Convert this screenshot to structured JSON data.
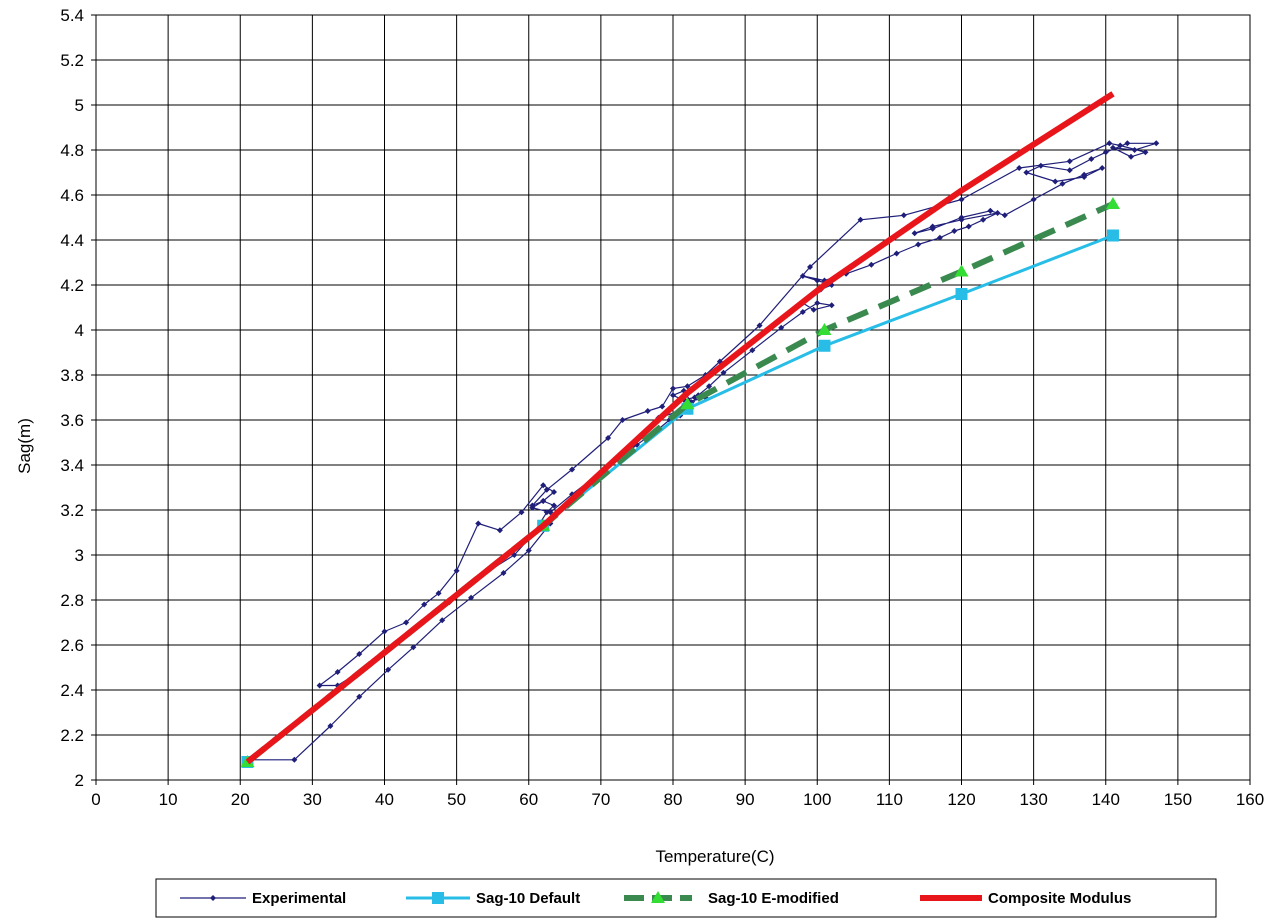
{
  "chart_data": {
    "type": "line",
    "title": "",
    "xlabel": "Temperature(C)",
    "ylabel": "Sag(m)",
    "xlim": [
      0,
      160
    ],
    "ylim": [
      2,
      5.4
    ],
    "xticks": [
      0,
      10,
      20,
      30,
      40,
      50,
      60,
      70,
      80,
      90,
      100,
      110,
      120,
      130,
      140,
      150,
      160
    ],
    "yticks": [
      "2",
      "2.2",
      "2.4",
      "2.6",
      "2.8",
      "3",
      "3.2",
      "3.4",
      "3.6",
      "3.8",
      "4",
      "4.2",
      "4.4",
      "4.6",
      "4.8",
      "5",
      "5.2",
      "5.4"
    ],
    "grid": true,
    "legend_position": "bottom",
    "series": [
      {
        "name": "Experimental",
        "color": "#1f1f7a",
        "marker": "diamond",
        "x": [
          21.0,
          27.5,
          32.5,
          36.5,
          40.5,
          44.0,
          48.0,
          52.0,
          56.5,
          60.0,
          63.0,
          65.5,
          70.0,
          75.0,
          78.0,
          79.5,
          81.0,
          82.5,
          83.5,
          85.0,
          87.0,
          91.0,
          95.0,
          98.0,
          100.0,
          102.0,
          99.5,
          98.0,
          100.5,
          102.0,
          100.0,
          98.0,
          101.0,
          104.0,
          107.5,
          111.0,
          114.0,
          117.0,
          119.0,
          121.0,
          123.0,
          125.0,
          120.0,
          116.0,
          113.5,
          116.0,
          120.0,
          124.0,
          126.0,
          130.0,
          134.0,
          137.0,
          139.5,
          137.0,
          133.0,
          129.0,
          131.0,
          135.0,
          138.0,
          140.0,
          143.0,
          147.0,
          144.0,
          141.0,
          143.5,
          145.5,
          142.0,
          140.5,
          135.0,
          128.0,
          120.0,
          112.0,
          106.0,
          99.0,
          92.0,
          86.5,
          84.5,
          82.0,
          80.0,
          78.5,
          76.5,
          73.0,
          71.0,
          66.0,
          62.5,
          60.5,
          62.0,
          63.5,
          62.0,
          59.0,
          56.0,
          53.0,
          50.0,
          47.5,
          45.5,
          43.0,
          40.0,
          36.5,
          33.5,
          31.0,
          33.5,
          36.5,
          40.5,
          44.5,
          49.0,
          53.5,
          58.0,
          60.5,
          62.5,
          63.5,
          62.0,
          60.5,
          63.0,
          66.0,
          70.5,
          74.5,
          78.0,
          81.0,
          82.5,
          81.5,
          80.0,
          82.0,
          84.5,
          85.0,
          83.0,
          81.5
        ],
        "y": [
          2.09,
          2.09,
          2.24,
          2.37,
          2.49,
          2.59,
          2.71,
          2.81,
          2.92,
          3.02,
          3.14,
          3.23,
          3.36,
          3.49,
          3.56,
          3.6,
          3.62,
          3.66,
          3.71,
          3.75,
          3.81,
          3.91,
          4.01,
          4.08,
          4.12,
          4.11,
          4.09,
          4.12,
          4.18,
          4.2,
          4.22,
          4.24,
          4.22,
          4.25,
          4.29,
          4.34,
          4.38,
          4.41,
          4.44,
          4.46,
          4.49,
          4.52,
          4.49,
          4.46,
          4.43,
          4.45,
          4.5,
          4.53,
          4.51,
          4.58,
          4.65,
          4.69,
          4.72,
          4.68,
          4.66,
          4.7,
          4.73,
          4.71,
          4.76,
          4.79,
          4.83,
          4.83,
          4.8,
          4.81,
          4.77,
          4.79,
          4.82,
          4.83,
          4.75,
          4.72,
          4.58,
          4.51,
          4.49,
          4.28,
          4.02,
          3.86,
          3.8,
          3.75,
          3.74,
          3.66,
          3.64,
          3.6,
          3.52,
          3.38,
          3.29,
          3.22,
          3.24,
          3.28,
          3.31,
          3.19,
          3.11,
          3.14,
          2.93,
          2.83,
          2.78,
          2.7,
          2.66,
          2.56,
          2.48,
          2.42,
          2.42,
          2.48,
          2.58,
          2.68,
          2.79,
          2.91,
          3.0,
          3.09,
          3.19,
          3.22,
          3.24,
          3.21,
          3.19,
          3.27,
          3.38,
          3.49,
          3.61,
          3.64,
          3.68,
          3.73,
          3.71,
          3.68,
          3.7,
          3.72,
          3.7,
          3.69
        ]
      },
      {
        "name": "Sag-10 Default",
        "color": "#27bde6",
        "marker": "square",
        "x": [
          21,
          62,
          82,
          101,
          120,
          141
        ],
        "y": [
          2.08,
          3.13,
          3.65,
          3.93,
          4.16,
          4.42
        ]
      },
      {
        "name": "Sag-10 E-modified",
        "color": "#3a8a4f",
        "marker_color": "#33dd33",
        "marker": "triangle",
        "dashed": true,
        "x": [
          21,
          62,
          82,
          101,
          120,
          141
        ],
        "y": [
          2.08,
          3.13,
          3.67,
          4.0,
          4.26,
          4.56
        ]
      },
      {
        "name": "Composite Modulus",
        "color": "#e8161b",
        "marker": "none",
        "x": [
          21,
          62,
          82,
          101,
          120,
          141
        ],
        "y": [
          2.08,
          3.13,
          3.72,
          4.2,
          4.62,
          5.05
        ]
      }
    ]
  }
}
